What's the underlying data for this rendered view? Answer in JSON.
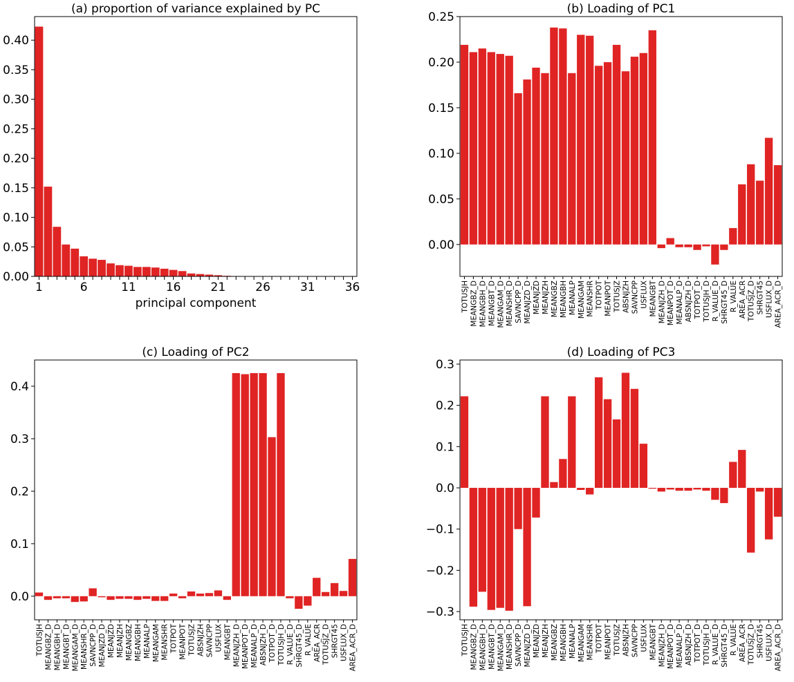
{
  "colors": {
    "bar": "#e02424"
  },
  "chart_data": [
    {
      "id": "a",
      "type": "bar",
      "title": "(a) proportion of variance explained by PC",
      "xlabel": "principal component",
      "ylabel": "",
      "categories": [
        1,
        2,
        3,
        4,
        5,
        6,
        7,
        8,
        9,
        10,
        11,
        12,
        13,
        14,
        15,
        16,
        17,
        18,
        19,
        20,
        21,
        22,
        23,
        24,
        25,
        26,
        27,
        28,
        29,
        30,
        31,
        32,
        33,
        34,
        35,
        36
      ],
      "values": [
        0.423,
        0.152,
        0.084,
        0.054,
        0.047,
        0.034,
        0.03,
        0.028,
        0.022,
        0.019,
        0.018,
        0.016,
        0.016,
        0.015,
        0.013,
        0.011,
        0.009,
        0.005,
        0.004,
        0.003,
        0.002,
        0.001,
        0.0006,
        0.0004,
        0.0003,
        0.0002,
        0.0001,
        0,
        0,
        0,
        0,
        0,
        0,
        0,
        0,
        0
      ],
      "ylim": [
        0,
        0.44
      ],
      "yticks": [
        0.0,
        0.05,
        0.1,
        0.15,
        0.2,
        0.25,
        0.3,
        0.35,
        0.4
      ],
      "ytick_labels": [
        "0.00",
        "0.05",
        "0.10",
        "0.15",
        "0.20",
        "0.25",
        "0.30",
        "0.35",
        "0.40"
      ],
      "xtick_labels": [
        "1",
        "6",
        "11",
        "16",
        "21",
        "26",
        "31",
        "36"
      ]
    },
    {
      "id": "b",
      "type": "bar",
      "title": "(b) Loading of PC1",
      "xlabel": "",
      "ylabel": "",
      "categories": [
        "TOTUSJH",
        "MEANGBZ_D",
        "MEANGBH_D",
        "MEANGBT_D",
        "MEANGAM_D",
        "MEANSHR_D",
        "SAVNCPP_D",
        "MEANJZD_D",
        "MEANJZD",
        "MEANJZH",
        "MEANGBZ",
        "MEANGBH",
        "MEANALP",
        "MEANGAM",
        "MEANSHR",
        "TOTPOT",
        "MEANPOT",
        "TOTUSJZ",
        "ABSNJZH",
        "SAVNCPP",
        "USFLUX",
        "MEANGBT",
        "MEANJZH_D",
        "MEANPOT_D",
        "MEANALP_D",
        "ABSNJZH_D",
        "TOTPOT_D",
        "TOTUSJH_D",
        "R_VALUE_D",
        "SHRGT45_D",
        "R_VALUE",
        "AREA_ACR",
        "TOTUSJZ_D",
        "SHRGT45",
        "USFLUX_D",
        "AREA_ACR_D"
      ],
      "values": [
        0.219,
        0.211,
        0.215,
        0.211,
        0.209,
        0.207,
        0.166,
        0.181,
        0.194,
        0.188,
        0.238,
        0.237,
        0.188,
        0.23,
        0.229,
        0.196,
        0.2,
        0.219,
        0.19,
        0.206,
        0.21,
        0.235,
        -0.004,
        0.007,
        -0.003,
        -0.003,
        -0.006,
        -0.002,
        -0.022,
        -0.006,
        0.018,
        0.066,
        0.088,
        0.07,
        0.117,
        0.087
      ],
      "ylim": [
        -0.035,
        0.25
      ],
      "yticks": [
        0.0,
        0.05,
        0.1,
        0.15,
        0.2,
        0.25
      ],
      "ytick_labels": [
        "0.00",
        "0.05",
        "0.10",
        "0.15",
        "0.20",
        "0.25"
      ]
    },
    {
      "id": "c",
      "type": "bar",
      "title": "(c) Loading of PC2",
      "xlabel": "",
      "ylabel": "",
      "categories": [
        "TOTUSJH",
        "MEANGBZ_D",
        "MEANGBH_D",
        "MEANGBT_D",
        "MEANGAM_D",
        "MEANSHR_D",
        "SAVNCPP_D",
        "MEANJZD_D",
        "MEANJZD",
        "MEANJZH",
        "MEANGBZ",
        "MEANGBH",
        "MEANALP",
        "MEANGAM",
        "MEANSHR",
        "TOTPOT",
        "MEANPOT",
        "TOTUSJZ",
        "ABSNJZH",
        "SAVNCPP",
        "USFLUX",
        "MEANGBT",
        "MEANJZH_D",
        "MEANPOT_D",
        "MEANALP_D",
        "ABSNJZH_D",
        "TOTPOT_D",
        "TOTUSJH_D",
        "R_VALUE_D",
        "SHRGT45_D",
        "R_VALUE",
        "AREA_ACR",
        "TOTUSJZ_D",
        "SHRGT45",
        "USFLUX_D",
        "AREA_ACR_D"
      ],
      "values": [
        0.007,
        -0.007,
        -0.004,
        -0.004,
        -0.011,
        -0.01,
        0.015,
        -0.002,
        -0.007,
        -0.005,
        -0.005,
        -0.007,
        -0.005,
        -0.009,
        -0.009,
        0.005,
        -0.004,
        0.009,
        0.005,
        0.006,
        0.011,
        -0.007,
        0.425,
        0.423,
        0.425,
        0.425,
        0.303,
        0.425,
        -0.004,
        -0.024,
        -0.018,
        0.035,
        0.008,
        0.025,
        0.01,
        0.071
      ],
      "ylim": [
        -0.045,
        0.45
      ],
      "yticks": [
        0.0,
        0.1,
        0.2,
        0.3,
        0.4
      ],
      "ytick_labels": [
        "0.0",
        "0.1",
        "0.2",
        "0.3",
        "0.4"
      ]
    },
    {
      "id": "d",
      "type": "bar",
      "title": "(d) Loading of PC3",
      "xlabel": "",
      "ylabel": "",
      "categories": [
        "TOTUSJH",
        "MEANGBZ_D",
        "MEANGBH_D",
        "MEANGBT_D",
        "MEANGAM_D",
        "MEANSHR_D",
        "SAVNCPP_D",
        "MEANJZD_D",
        "MEANJZD",
        "MEANJZH",
        "MEANGBZ",
        "MEANGBH",
        "MEANALP",
        "MEANGAM",
        "MEANSHR",
        "TOTPOT",
        "MEANPOT",
        "TOTUSJZ",
        "ABSNJZH",
        "SAVNCPP",
        "USFLUX",
        "MEANGBT",
        "MEANJZH_D",
        "MEANPOT_D",
        "MEANALP_D",
        "ABSNJZH_D",
        "TOTPOT_D",
        "TOTUSJH_D",
        "R_VALUE_D",
        "SHRGT45_D",
        "R_VALUE",
        "AREA_ACR",
        "TOTUSJZ_D",
        "SHRGT45",
        "USFLUX_D",
        "AREA_ACR_D"
      ],
      "values": [
        0.222,
        -0.288,
        -0.252,
        -0.296,
        -0.291,
        -0.298,
        -0.1,
        -0.287,
        -0.072,
        0.222,
        0.014,
        0.07,
        0.222,
        -0.005,
        -0.016,
        0.268,
        0.215,
        0.166,
        0.279,
        0.24,
        0.107,
        -0.002,
        -0.009,
        -0.004,
        -0.007,
        -0.007,
        -0.004,
        -0.007,
        -0.029,
        -0.037,
        0.063,
        0.092,
        -0.157,
        -0.009,
        -0.125,
        -0.07
      ],
      "ylim": [
        -0.32,
        0.31
      ],
      "yticks": [
        -0.3,
        -0.2,
        -0.1,
        0.0,
        0.1,
        0.2,
        0.3
      ],
      "ytick_labels": [
        "−0.3",
        "−0.2",
        "−0.1",
        "0.0",
        "0.1",
        "0.2",
        "0.3"
      ]
    }
  ]
}
